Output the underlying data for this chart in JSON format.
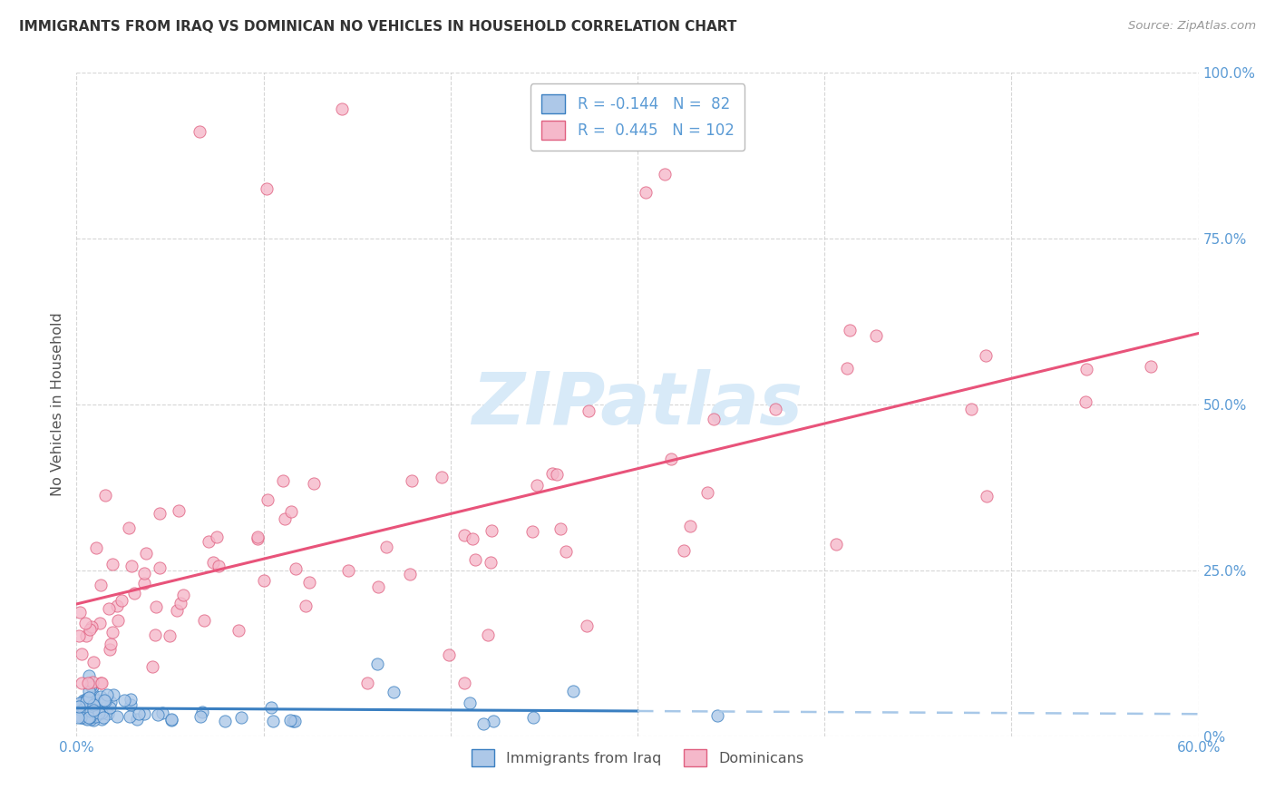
{
  "title": "IMMIGRANTS FROM IRAQ VS DOMINICAN NO VEHICLES IN HOUSEHOLD CORRELATION CHART",
  "source": "Source: ZipAtlas.com",
  "ylabel": "No Vehicles in Household",
  "xmin": 0.0,
  "xmax": 0.6,
  "ymin": 0.0,
  "ymax": 1.0,
  "xtick_vals": [
    0.0,
    0.1,
    0.2,
    0.3,
    0.4,
    0.5,
    0.6
  ],
  "xtick_labels": [
    "0.0%",
    "",
    "",
    "",
    "",
    "",
    "60.0%"
  ],
  "ytick_vals": [
    0.0,
    0.25,
    0.5,
    0.75,
    1.0
  ],
  "ytick_labels_right": [
    "0%",
    "25.0%",
    "50.0%",
    "75.0%",
    "100.0%"
  ],
  "legend_label1": "Immigrants from Iraq",
  "legend_label2": "Dominicans",
  "legend_R1": "-0.144",
  "legend_N1": "82",
  "legend_R2": "0.445",
  "legend_N2": "102",
  "color_iraq": "#adc8e8",
  "color_dominican": "#f5b8ca",
  "trendline_iraq_solid": "#3a7fc1",
  "trendline_iraq_dash": "#a8c8e8",
  "trendline_dominican_solid": "#e8537a",
  "background_color": "#ffffff",
  "grid_color": "#cccccc",
  "watermark_color": "#d8eaf8",
  "title_color": "#333333",
  "tick_color": "#5b9bd5",
  "source_color": "#999999",
  "ylabel_color": "#555555"
}
